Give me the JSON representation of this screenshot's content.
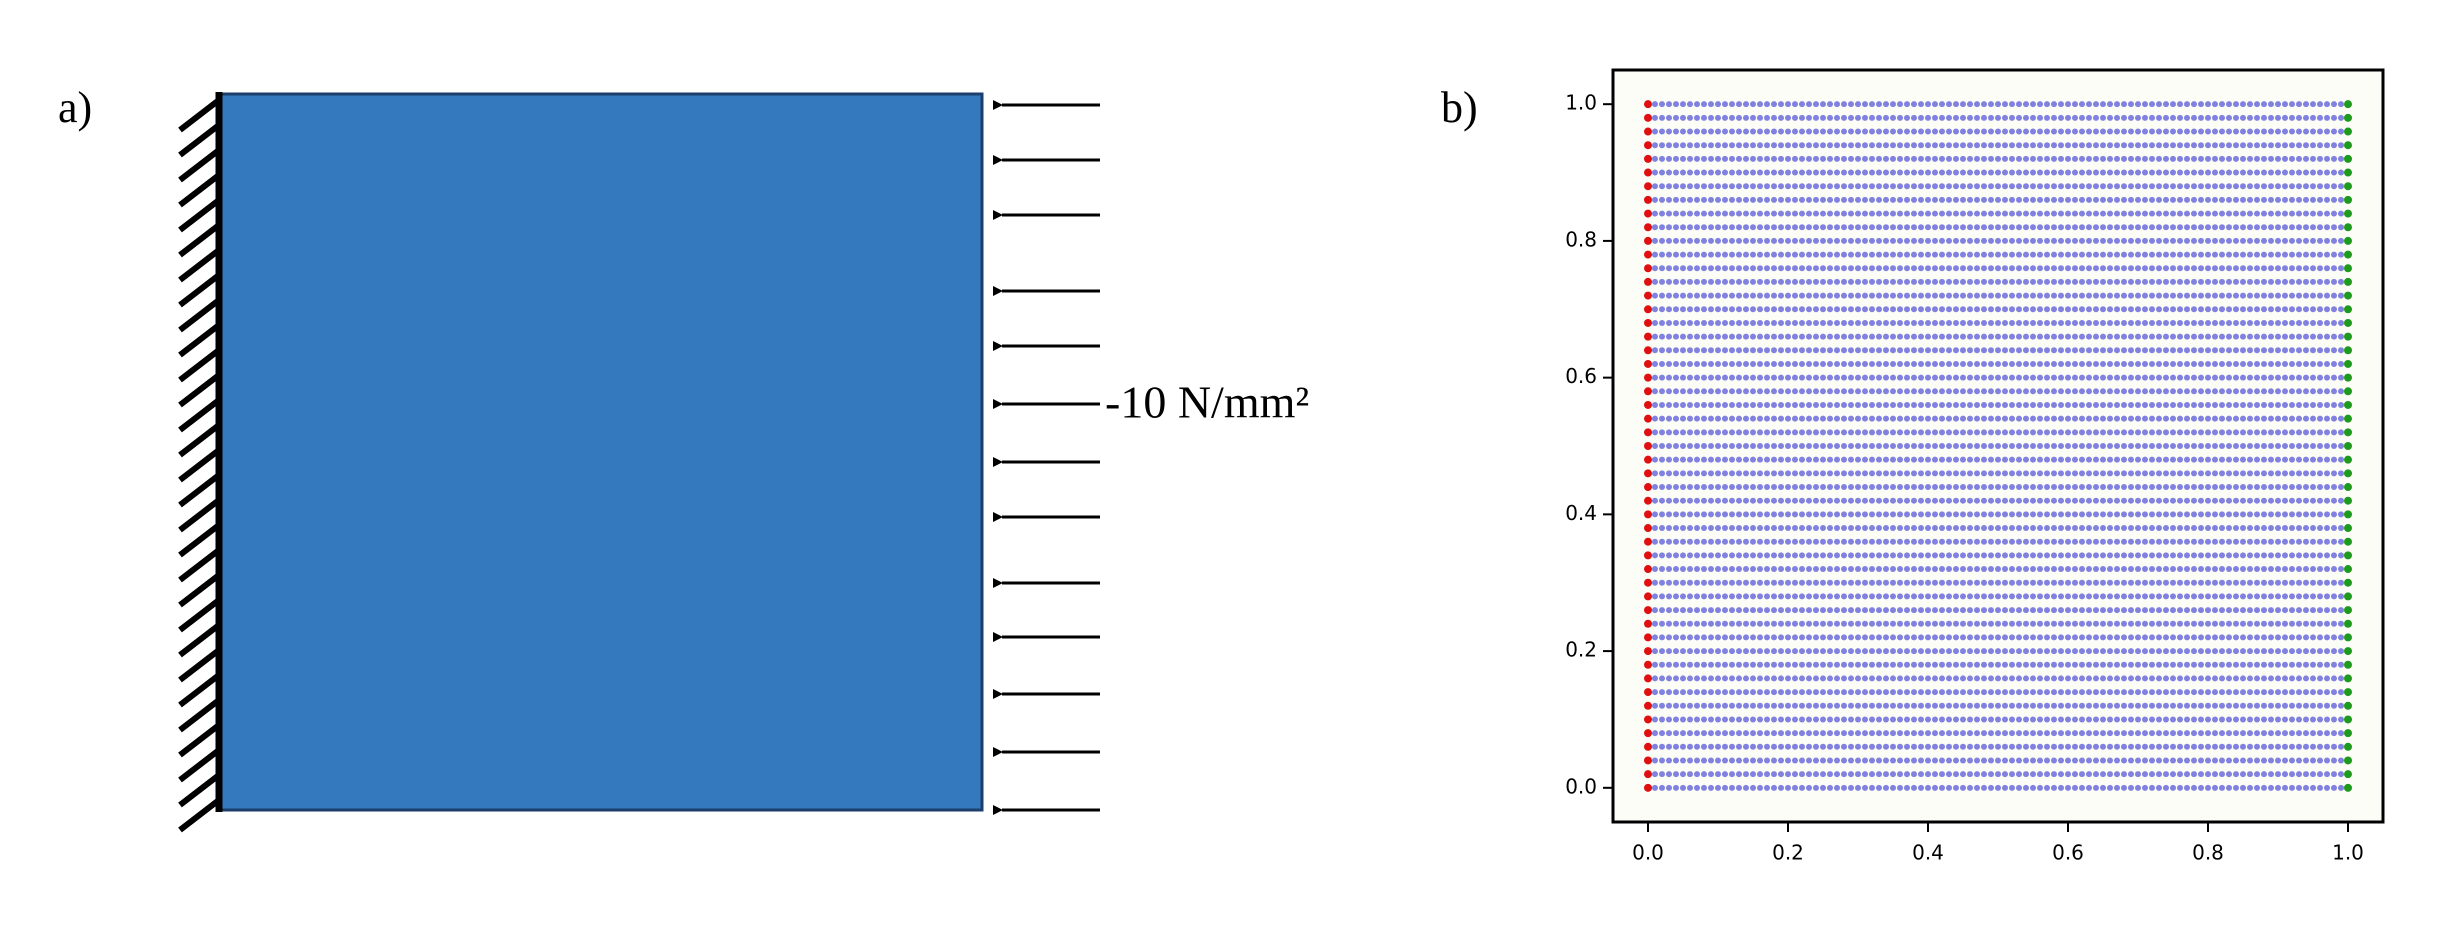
{
  "panel_a": {
    "label": "a)",
    "load_label": "-10 N/mm²"
  },
  "panel_b": {
    "label": "b)"
  },
  "chart_data": {
    "type": "scatter",
    "y": [
      0,
      0.02,
      0.04,
      0.06,
      0.08,
      0.1,
      0.12,
      0.14,
      0.16,
      0.18,
      0.2,
      0.22,
      0.24,
      0.26,
      0.28,
      0.3,
      0.32,
      0.34,
      0.36,
      0.38,
      0.4,
      0.42,
      0.44,
      0.46,
      0.48,
      0.5,
      0.52,
      0.54,
      0.56,
      0.58,
      0.6,
      0.62,
      0.64,
      0.66,
      0.68,
      0.7,
      0.72,
      0.74,
      0.76,
      0.78,
      0.8,
      0.82,
      0.84,
      0.86,
      0.88,
      0.9,
      0.92,
      0.94,
      0.96,
      0.98,
      1
    ],
    "series": [
      {
        "color": "#4b4bd6",
        "x": [
          0.01,
          0.02,
          0.03,
          0.04,
          0.05,
          0.06,
          0.07,
          0.08,
          0.09,
          0.1,
          0.11,
          0.12,
          0.13,
          0.14,
          0.15,
          0.16,
          0.17,
          0.18,
          0.19,
          0.2,
          0.21,
          0.22,
          0.23,
          0.24,
          0.25,
          0.26,
          0.27,
          0.28,
          0.29,
          0.3,
          0.31,
          0.32,
          0.33,
          0.34,
          0.35,
          0.36,
          0.37,
          0.38,
          0.39,
          0.4,
          0.41,
          0.42,
          0.43,
          0.44,
          0.45,
          0.46,
          0.47,
          0.48,
          0.49,
          0.5,
          0.51,
          0.52,
          0.53,
          0.54,
          0.55,
          0.56,
          0.57,
          0.58,
          0.59,
          0.6,
          0.61,
          0.62,
          0.63,
          0.64,
          0.65,
          0.66,
          0.67,
          0.68,
          0.69,
          0.7,
          0.71,
          0.72,
          0.73,
          0.74,
          0.75,
          0.76,
          0.77,
          0.78,
          0.79,
          0.8,
          0.81,
          0.82,
          0.83,
          0.84,
          0.85,
          0.86,
          0.87,
          0.88,
          0.89,
          0.9,
          0.91,
          0.92,
          0.93,
          0.94,
          0.95,
          0.96,
          0.97,
          0.98,
          0.99
        ]
      },
      {
        "color": "#e01010",
        "x": [
          0
        ]
      },
      {
        "color": "#1e9a1e",
        "x": [
          1
        ]
      }
    ],
    "xlim": [
      -0.05,
      1.05
    ],
    "ylim": [
      -0.05,
      1.05
    ],
    "xticks": [
      {
        "value": 0,
        "label": "0.0"
      },
      0.2,
      0.4,
      0.6,
      0.8,
      {
        "value": 1,
        "label": "1.0"
      }
    ],
    "yticks": [
      {
        "value": 0,
        "label": "0.0"
      },
      0.2,
      0.4,
      0.6,
      0.8,
      {
        "value": 1,
        "label": "1.0"
      }
    ]
  }
}
